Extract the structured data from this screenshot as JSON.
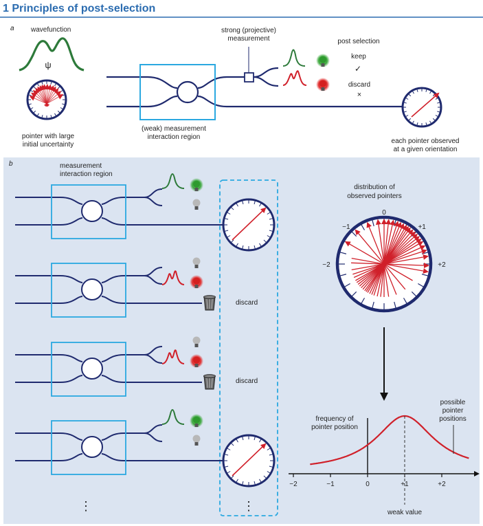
{
  "title": "1 Principles of post-selection",
  "colors": {
    "accent": "#2b6cb0",
    "panel_b_bg": "#dbe4f1",
    "wire": "#1f2a6e",
    "box": "#2aa8e0",
    "red": "#d0202a",
    "green": "#2d7a3a",
    "dashed": "#2aa8e0"
  },
  "panel_a": {
    "label": "a",
    "wavefunction_label": "wavefunction",
    "psi_symbol": "ψ",
    "pointer_label_line1": "pointer with large",
    "pointer_label_line2": "initial uncertainty",
    "strong_line1": "strong (projective)",
    "strong_line2": "measurement",
    "weak_line1": "(weak) measurement",
    "weak_line2": "interaction region",
    "post_selection": "post selection",
    "keep": "keep",
    "keep_mark": "✓",
    "discard": "discard",
    "discard_mark": "×",
    "observed_line1": "each pointer observed",
    "observed_line2": "at a given orientation"
  },
  "panel_b": {
    "label": "b",
    "region_line1": "measurement",
    "region_line2": "interaction region",
    "discard_1": "discard",
    "discard_2": "discard",
    "dots": "⋮",
    "distribution_line1": "distribution of",
    "distribution_line2": "observed pointers",
    "dial_labels": [
      "−2",
      "−1",
      "0",
      "+1",
      "+2"
    ]
  },
  "chart_data": {
    "type": "line",
    "xlabel": "",
    "ylabel": "frequency of pointer position",
    "x_ticks": [
      "−2",
      "−1",
      "0",
      "+1",
      "+2"
    ],
    "xlim": [
      -2,
      2.8
    ],
    "peak_x": 1,
    "weak_value_label": "weak value",
    "annotation_line1": "possible",
    "annotation_line2": "pointer",
    "annotation_line3": "positions",
    "ylabel_line1": "frequency of",
    "ylabel_line2": "pointer position"
  }
}
